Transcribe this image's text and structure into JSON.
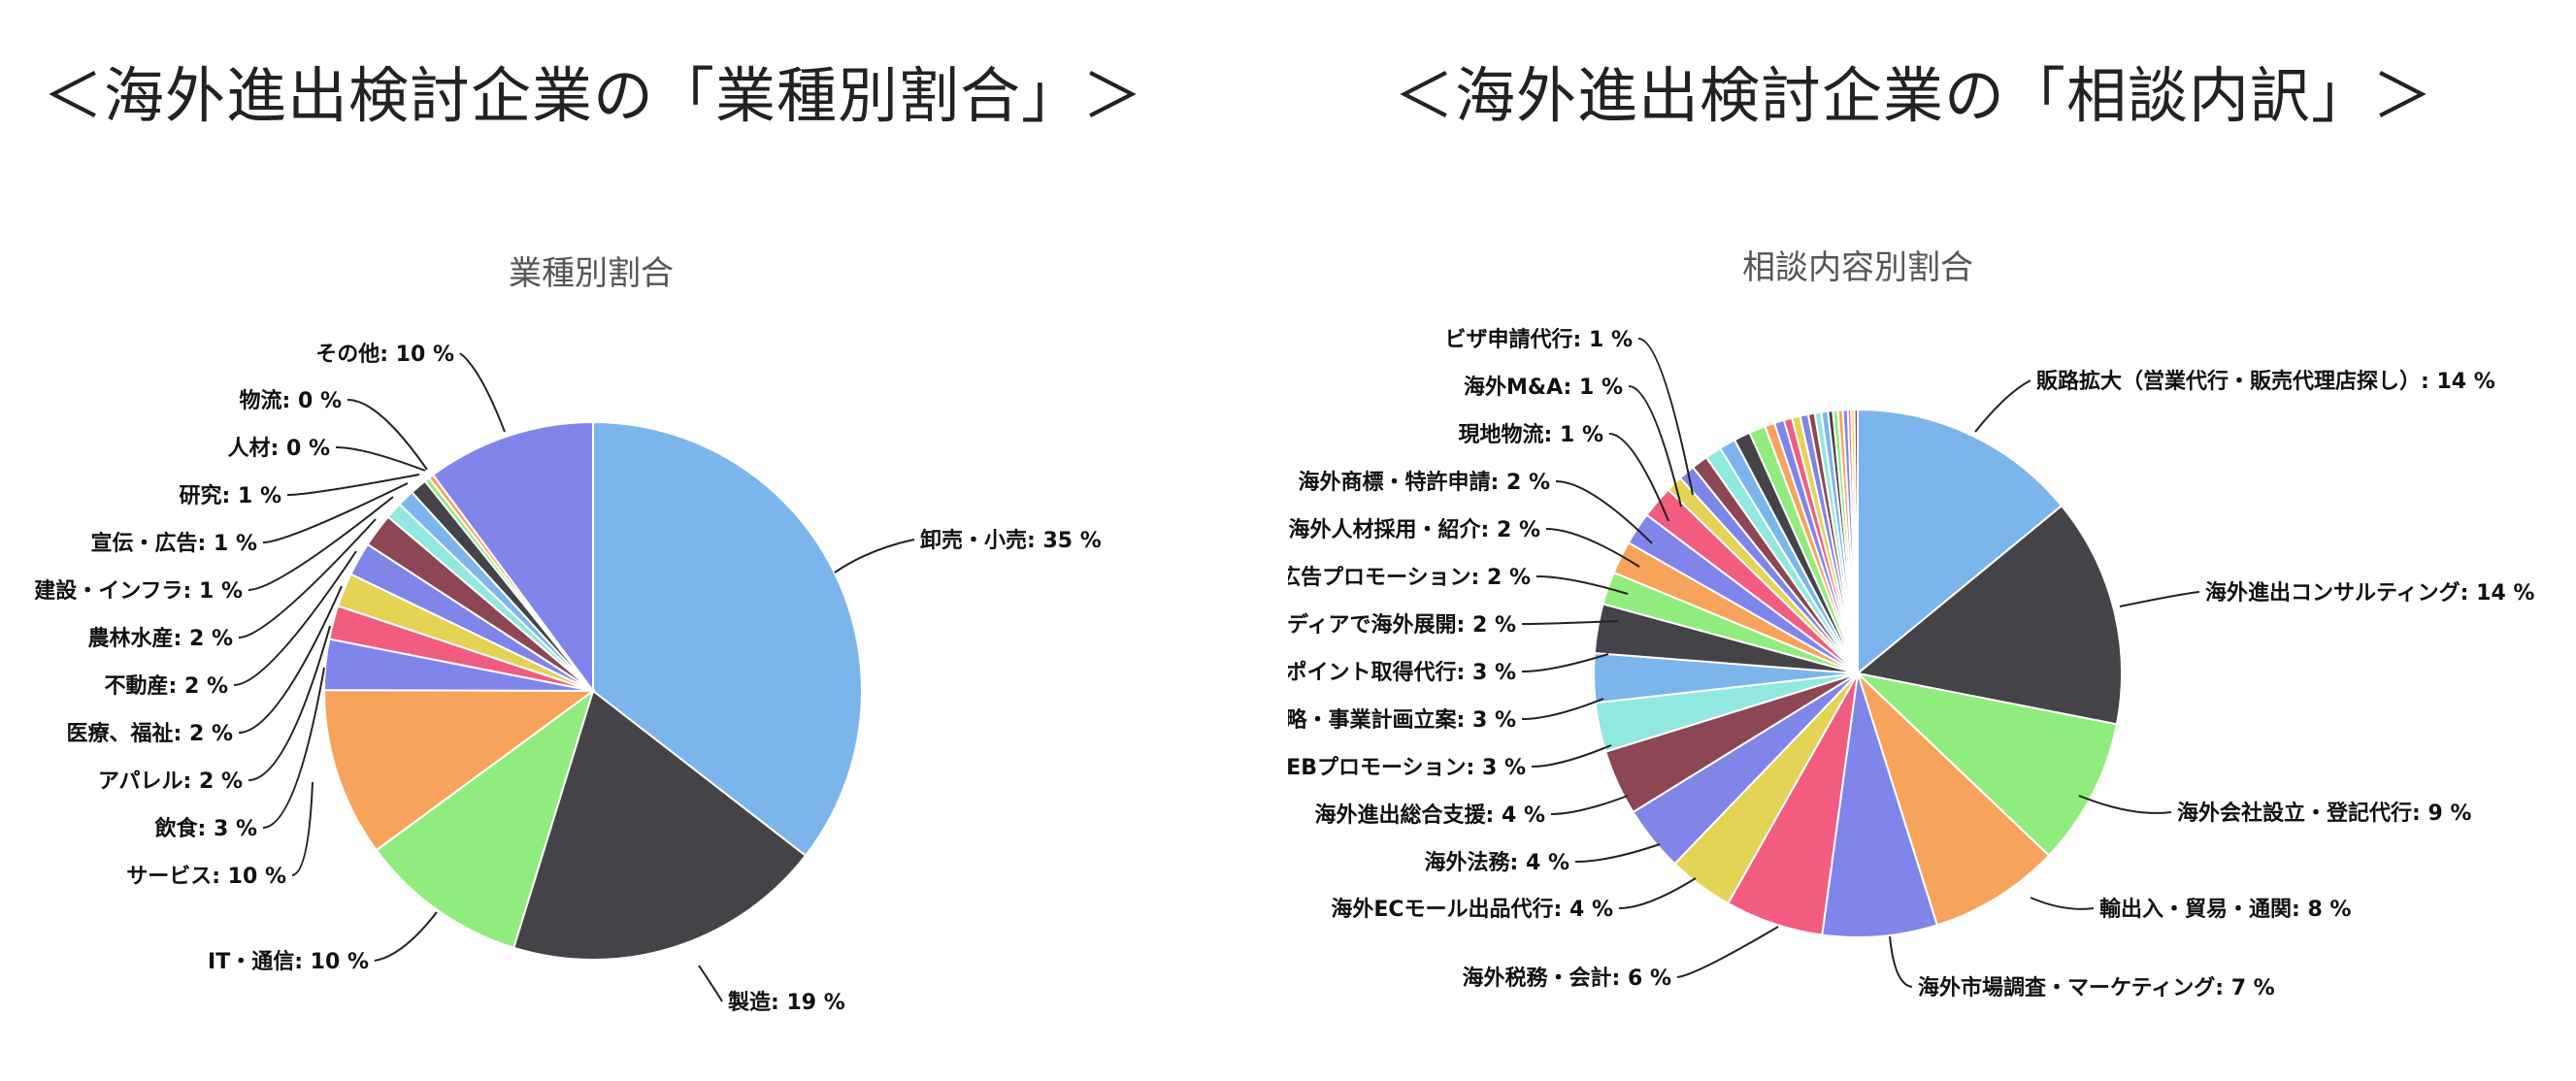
{
  "headings": {
    "left": "＜海外進出検討企業の「業種別割合」＞",
    "right": "＜海外進出検討企業の「相談内訳」＞"
  },
  "chart_data": [
    {
      "type": "pie",
      "title": "業種別割合",
      "slices": [
        {
          "label": "卸売・小売",
          "value": 35,
          "value_text": "35 %",
          "color": "#7cb5ec"
        },
        {
          "label": "製造",
          "value": 19,
          "value_text": "19 %",
          "color": "#434348"
        },
        {
          "label": "IT・通信",
          "value": 10,
          "value_text": "10 %",
          "color": "#90ed7d"
        },
        {
          "label": "サービス",
          "value": 10,
          "value_text": "10 %",
          "color": "#f7a35c"
        },
        {
          "label": "飲食",
          "value": 3,
          "value_text": "3 %",
          "color": "#8085e9"
        },
        {
          "label": "アパレル",
          "value": 2,
          "value_text": "2 %",
          "color": "#f15c80"
        },
        {
          "label": "医療、福祉",
          "value": 2,
          "value_text": "2 %",
          "color": "#e4d354"
        },
        {
          "label": "不動産",
          "value": 2,
          "value_text": "2 %",
          "color": "#8085e8"
        },
        {
          "label": "農林水産",
          "value": 2,
          "value_text": "2 %",
          "color": "#8d4653"
        },
        {
          "label": "建設・インフラ",
          "value": 1,
          "value_text": "1 %",
          "color": "#91e8e1"
        },
        {
          "label": "宣伝・広告",
          "value": 1,
          "value_text": "1 %",
          "color": "#7cb5ec"
        },
        {
          "label": "研究",
          "value": 1,
          "value_text": "1 %",
          "color": "#434348"
        },
        {
          "label": "人材",
          "value": 0.3,
          "value_text": "0 %",
          "color": "#90ed7d"
        },
        {
          "label": "物流",
          "value": 0.3,
          "value_text": "0 %",
          "color": "#f7a35c"
        },
        {
          "label": "その他",
          "value": 10,
          "value_text": "10 %",
          "color": "#8085e9"
        }
      ]
    },
    {
      "type": "pie",
      "title": "相談内容別割合",
      "slices": [
        {
          "label": "販路拡大（営業代行・販売代理店探し）",
          "value": 14,
          "value_text": "14 %",
          "color": "#7cb5ec"
        },
        {
          "label": "海外進出コンサルティング",
          "value": 14,
          "value_text": "14 %",
          "color": "#434348"
        },
        {
          "label": "海外会社設立・登記代行",
          "value": 9,
          "value_text": "9 %",
          "color": "#90ed7d"
        },
        {
          "label": "輸出入・貿易・通関",
          "value": 8,
          "value_text": "8 %",
          "color": "#f7a35c"
        },
        {
          "label": "海外市場調査・マーケティング",
          "value": 7,
          "value_text": "7 %",
          "color": "#8085e9"
        },
        {
          "label": "海外税務・会計",
          "value": 6,
          "value_text": "6 %",
          "color": "#f15c80"
        },
        {
          "label": "海外ECモール出品代行",
          "value": 4,
          "value_text": "4 %",
          "color": "#e4d354"
        },
        {
          "label": "海外法務",
          "value": 4,
          "value_text": "4 %",
          "color": "#8085e8"
        },
        {
          "label": "海外進出総合支援",
          "value": 4,
          "value_text": "4 %",
          "color": "#8d4653"
        },
        {
          "label": "海外WEBプロモーション",
          "value": 3,
          "value_text": "3 %",
          "color": "#91e8e1"
        },
        {
          "label": "海外進出戦略・事業計画立案",
          "value": 3,
          "value_text": "3 %",
          "color": "#7cb5ec"
        },
        {
          "label": "海外アポイント取得代行",
          "value": 3,
          "value_text": "3 %",
          "color": "#434348"
        },
        {
          "label": "ソーシャルメディアで海外展開",
          "value": 2,
          "value_text": "2 %",
          "color": "#90ed7d"
        },
        {
          "label": "海外広告プロモーション",
          "value": 2,
          "value_text": "2 %",
          "color": "#f7a35c"
        },
        {
          "label": "海外人材採用・紹介",
          "value": 2,
          "value_text": "2 %",
          "color": "#8085e9"
        },
        {
          "label": "海外商標・特許申請",
          "value": 2,
          "value_text": "2 %",
          "color": "#f15c80"
        },
        {
          "label": "現地物流",
          "value": 1,
          "value_text": "1 %",
          "color": "#e4d354"
        },
        {
          "label": "海外M&amp;A",
          "value": 1,
          "value_text": "1 %",
          "color": "#8085e8"
        },
        {
          "label": "ビザ申請代行",
          "value": 1,
          "value_text": "1 %",
          "color": "#8d4653"
        },
        {
          "label": "",
          "value": 1,
          "color": "#91e8e1"
        },
        {
          "label": "",
          "value": 1,
          "color": "#7cb5ec"
        },
        {
          "label": "",
          "value": 1,
          "color": "#434348"
        },
        {
          "label": "",
          "value": 1,
          "color": "#90ed7d"
        },
        {
          "label": "",
          "value": 0.6,
          "color": "#f7a35c"
        },
        {
          "label": "",
          "value": 0.6,
          "color": "#8085e9"
        },
        {
          "label": "",
          "value": 0.5,
          "color": "#f15c80"
        },
        {
          "label": "",
          "value": 0.5,
          "color": "#e4d354"
        },
        {
          "label": "",
          "value": 0.5,
          "color": "#8085e8"
        },
        {
          "label": "",
          "value": 0.4,
          "color": "#8d4653"
        },
        {
          "label": "",
          "value": 0.4,
          "color": "#91e8e1"
        },
        {
          "label": "",
          "value": 0.4,
          "color": "#7cb5ec"
        },
        {
          "label": "",
          "value": 0.3,
          "color": "#434348"
        },
        {
          "label": "",
          "value": 0.3,
          "color": "#90ed7d"
        },
        {
          "label": "",
          "value": 0.3,
          "color": "#f7a35c"
        },
        {
          "label": "",
          "value": 0.3,
          "color": "#8085e9"
        },
        {
          "label": "",
          "value": 0.2,
          "color": "#f15c80"
        },
        {
          "label": "",
          "value": 0.2,
          "color": "#e4d354"
        },
        {
          "label": "",
          "value": 0.2,
          "color": "#8d4653"
        }
      ]
    }
  ]
}
